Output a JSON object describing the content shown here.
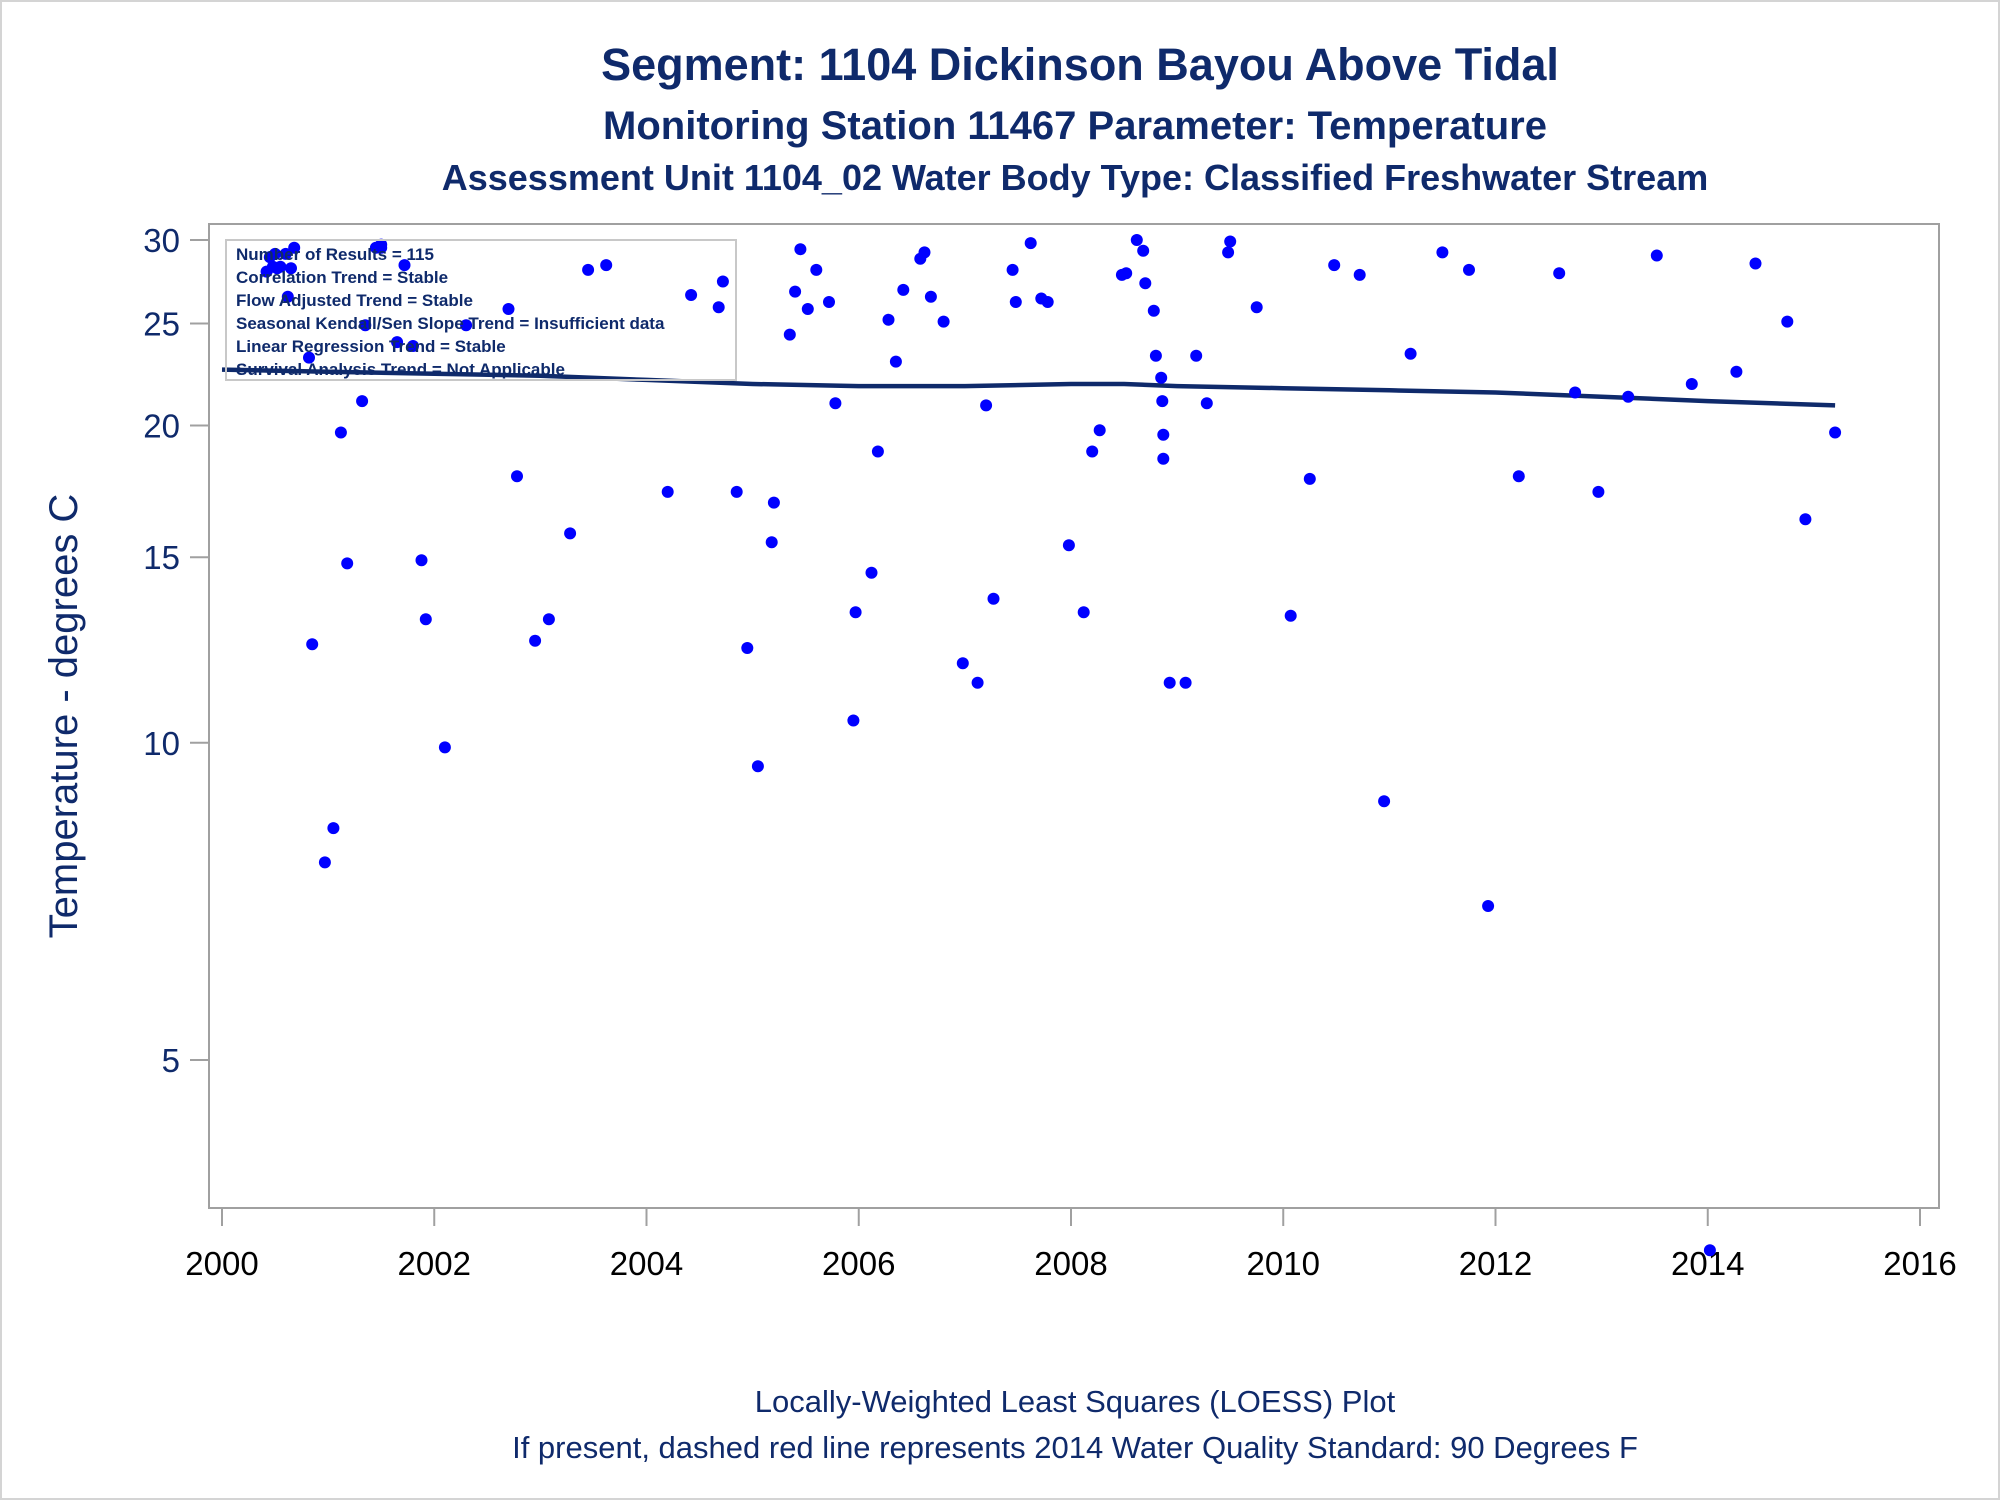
{
  "chart_data": {
    "type": "scatter",
    "title": "Segment: 1104  Dickinson Bayou Above Tidal",
    "subtitle": "Monitoring Station 11467 Parameter: Temperature",
    "subtitle2": "Assessment Unit 1104_02   Water Body Type: Classified Freshwater Stream",
    "xlabel": "",
    "ylabel": "Temperature - degrees C",
    "xlim": [
      2000,
      2016
    ],
    "ylim": [
      3.5,
      30
    ],
    "yscale": "log",
    "xticks": [
      "2000",
      "2002",
      "2004",
      "2006",
      "2008",
      "2010",
      "2012",
      "2014",
      "2016"
    ],
    "yticks": [
      "5",
      "10",
      "15",
      "20",
      "25",
      "30"
    ],
    "footnotes": [
      "Locally-Weighted Least Squares (LOESS) Plot",
      "If present, dashed red line represents 2014 Water Quality Standard: 90   Degrees F"
    ],
    "inset": [
      "Number of Results = 115",
      "Correlation Trend = Stable",
      "Flow Adjusted Trend = Stable",
      "Seasonal Kendall/Sen Slope Trend = Insufficient data",
      "Linear Regression Trend = Stable",
      "Survival Analysis Trend = Not Applicable"
    ],
    "colors": {
      "points": "#0000ff",
      "loess": "#0f2a6b",
      "text": "#0f2a6b",
      "axis": "#a0a0a0"
    },
    "loess": {
      "x": [
        2000.0,
        2001.0,
        2002.0,
        2003.0,
        2004.0,
        2005.0,
        2006.0,
        2007.0,
        2008.0,
        2008.5,
        2009.0,
        2010.0,
        2011.0,
        2012.0,
        2013.0,
        2014.0,
        2015.2
      ],
      "y": [
        22.6,
        22.5,
        22.4,
        22.3,
        22.1,
        21.9,
        21.8,
        21.8,
        21.9,
        21.9,
        21.8,
        21.7,
        21.6,
        21.5,
        21.3,
        21.1,
        20.9
      ]
    },
    "series": [
      {
        "x": [
          2000.42,
          2000.45,
          2000.48,
          2000.5,
          2000.52,
          2000.55,
          2000.6,
          2000.62,
          2000.65,
          2000.68,
          2000.82,
          2000.85,
          2000.97,
          2001.05,
          2001.12,
          2001.18,
          2001.32,
          2001.35,
          2001.45,
          2001.5,
          2001.65,
          2001.72,
          2001.8,
          2001.88,
          2001.92,
          2002.1,
          2002.3,
          2002.7,
          2002.78,
          2002.95,
          2003.08,
          2003.28,
          2003.45,
          2003.62,
          2004.2,
          2004.42,
          2004.68,
          2004.72,
          2004.85,
          2004.95,
          2005.05,
          2005.18,
          2005.2,
          2005.35,
          2005.4,
          2005.45,
          2005.52,
          2005.6,
          2005.72,
          2005.78,
          2005.95,
          2005.97,
          2006.12,
          2006.18,
          2006.28,
          2006.35,
          2006.42,
          2006.58,
          2006.62,
          2006.68,
          2006.8,
          2006.98,
          2007.12,
          2007.2,
          2007.27,
          2007.45,
          2007.48,
          2007.62,
          2007.72,
          2007.78,
          2007.98,
          2008.12,
          2008.2,
          2008.27,
          2008.48,
          2008.52,
          2008.62,
          2008.68,
          2008.7,
          2008.78,
          2008.8,
          2008.85,
          2008.86,
          2008.87,
          2008.87,
          2008.93,
          2009.08,
          2009.18,
          2009.28,
          2009.48,
          2009.5,
          2009.75,
          2010.07,
          2010.25,
          2010.48,
          2010.72,
          2010.95,
          2011.2,
          2011.5,
          2011.75,
          2011.93,
          2012.22,
          2012.6,
          2012.75,
          2012.97,
          2013.25,
          2013.52,
          2013.85,
          2014.02,
          2014.27,
          2014.45,
          2014.75,
          2014.92,
          2015.2,
          2001.5
        ],
        "y": [
          28.0,
          28.9,
          28.3,
          29.1,
          28.2,
          28.3,
          29.1,
          26.5,
          28.2,
          29.5,
          23.2,
          12.4,
          7.7,
          8.3,
          19.7,
          14.8,
          21.1,
          24.9,
          29.5,
          29.7,
          24.0,
          28.4,
          23.8,
          14.9,
          13.1,
          9.9,
          24.9,
          25.8,
          17.9,
          12.5,
          13.1,
          15.8,
          28.1,
          28.4,
          17.3,
          26.6,
          25.9,
          27.4,
          17.3,
          12.3,
          9.5,
          15.5,
          16.9,
          24.4,
          26.8,
          29.4,
          25.8,
          28.1,
          26.2,
          21.0,
          10.5,
          13.3,
          14.5,
          18.9,
          25.2,
          23.0,
          26.9,
          28.8,
          29.2,
          26.5,
          25.1,
          11.9,
          11.4,
          20.9,
          13.7,
          28.1,
          26.2,
          29.8,
          26.4,
          26.2,
          15.4,
          13.3,
          18.9,
          19.8,
          27.8,
          27.9,
          30.0,
          29.3,
          27.3,
          25.7,
          23.3,
          22.2,
          21.1,
          19.6,
          18.6,
          11.4,
          11.4,
          23.3,
          21.0,
          29.2,
          29.9,
          25.9,
          13.2,
          17.8,
          28.4,
          27.8,
          8.8,
          23.4,
          29.2,
          28.1,
          7.0,
          17.9,
          27.9,
          21.5,
          17.3,
          21.3,
          29.0,
          21.9,
          3.3,
          22.5,
          28.5,
          25.1,
          16.3,
          19.7,
          29.5
        ]
      }
    ]
  }
}
